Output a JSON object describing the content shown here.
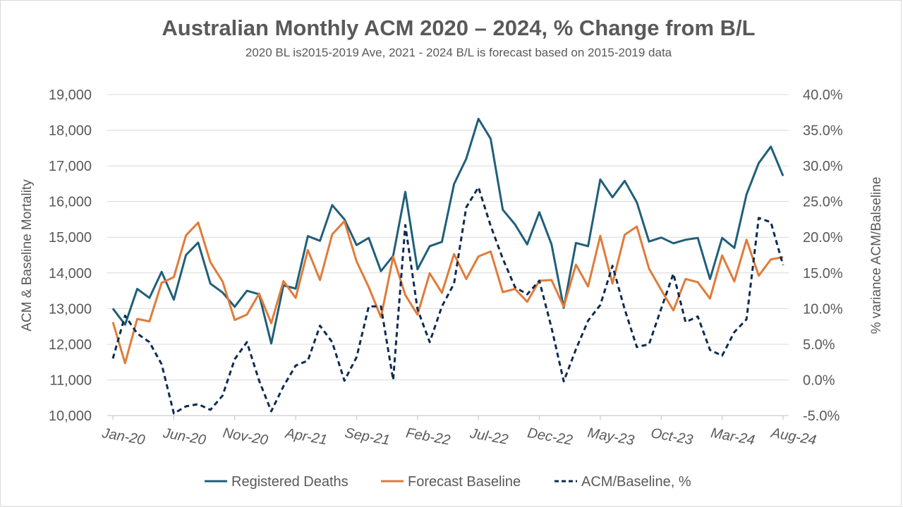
{
  "chart_data": {
    "type": "line",
    "title": "Australian Monthly ACM 2020 – 2024, % Change from B/L",
    "subtitle": "2020 BL is2015-2019 Ave, 2021 - 2024 B/L is forecast based on 2015-2019 data",
    "ylabel": "ACM & Baseline Mortality",
    "y2label": "% variance ACM/Balseline",
    "ylim": [
      10000,
      19000
    ],
    "y2lim": [
      -5,
      40
    ],
    "yticks": [
      "10,000",
      "11,000",
      "12,000",
      "13,000",
      "14,000",
      "15,000",
      "16,000",
      "17,000",
      "18,000",
      "19,000"
    ],
    "y2ticks": [
      "-5.0%",
      "0.0%",
      "5.0%",
      "10.0%",
      "15.0%",
      "20.0%",
      "25.0%",
      "30.0%",
      "35.0%",
      "40.0%"
    ],
    "xticks": [
      "Jan-20",
      "Jun-20",
      "Nov-20",
      "Apr-21",
      "Sep-21",
      "Feb-22",
      "Jul-22",
      "Dec-22",
      "May-23",
      "Oct-23",
      "Mar-24",
      "Aug-24"
    ],
    "grid": true,
    "legend_position": "bottom",
    "series": [
      {
        "name": "Registered Deaths",
        "axis": "left",
        "color": "#1f5f7a",
        "style": "solid",
        "values": [
          13000,
          12550,
          13550,
          13300,
          14030,
          13250,
          14500,
          14850,
          13700,
          13450,
          13050,
          13500,
          13400,
          12020,
          13650,
          13560,
          15030,
          14900,
          15900,
          15500,
          14780,
          14980,
          14050,
          14480,
          16270,
          14100,
          14750,
          14870,
          16490,
          17200,
          18320,
          17760,
          15770,
          15360,
          14800,
          15700,
          14800,
          13020,
          14840,
          14750,
          16620,
          16120,
          16580,
          15980,
          14880,
          14990,
          14830,
          14930,
          14980,
          13830,
          14980,
          14700,
          16200,
          17080,
          17540,
          16720
        ]
      },
      {
        "name": "Forecast Baseline",
        "axis": "left",
        "color": "#e07b39",
        "style": "solid",
        "values": [
          12620,
          11470,
          12710,
          12640,
          13720,
          13880,
          15050,
          15410,
          14300,
          13760,
          12680,
          12830,
          13420,
          12590,
          13770,
          13300,
          14640,
          13800,
          15080,
          15450,
          14320,
          13600,
          12760,
          14450,
          13380,
          12830,
          13990,
          13440,
          14530,
          13830,
          14460,
          14600,
          13460,
          13550,
          13190,
          13780,
          13800,
          13050,
          14230,
          13620,
          15040,
          13700,
          15070,
          15300,
          14120,
          13520,
          12950,
          13830,
          13740,
          13280,
          14490,
          13760,
          14930,
          13920,
          14380,
          14440
        ]
      },
      {
        "name": "ACM/Baseline, %",
        "axis": "right",
        "color": "#0d2b52",
        "style": "dashed",
        "values": [
          3.0,
          9.0,
          6.5,
          5.3,
          2.2,
          -4.7,
          -3.7,
          -3.4,
          -4.2,
          -2.2,
          2.9,
          5.3,
          -0.1,
          -4.4,
          -0.9,
          2.0,
          2.7,
          7.6,
          5.3,
          -0.1,
          3.2,
          10.3,
          10.3,
          0.0,
          21.7,
          9.9,
          5.3,
          10.3,
          13.5,
          24.2,
          27.0,
          21.6,
          17.0,
          13.0,
          12.0,
          13.9,
          7.3,
          -0.2,
          4.3,
          8.3,
          10.5,
          16.0,
          9.9,
          4.6,
          5.0,
          10.0,
          14.9,
          8.1,
          8.9,
          4.2,
          3.4,
          6.7,
          8.5,
          22.7,
          22.1,
          16.1
        ]
      }
    ]
  }
}
